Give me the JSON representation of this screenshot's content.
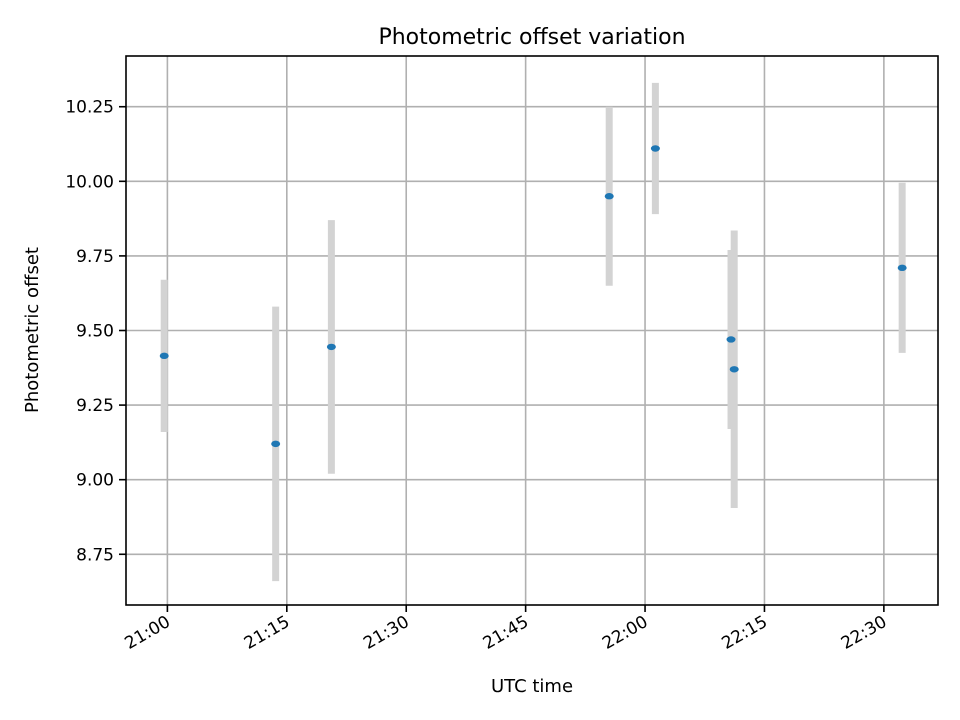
{
  "chart_data": {
    "type": "scatter",
    "title": "Photometric offset variation",
    "xlabel": "UTC time",
    "ylabel": "Photometric offset",
    "x_ticks": [
      "21:00",
      "21:15",
      "21:30",
      "21:45",
      "22:00",
      "22:15",
      "22:30"
    ],
    "y_ticks": [
      "8.75",
      "9.00",
      "9.25",
      "9.50",
      "9.75",
      "10.00",
      "10.25"
    ],
    "xlim": [
      "20:54.8",
      "22:36.8"
    ],
    "ylim": [
      8.58,
      10.42
    ],
    "grid": true,
    "colors": {
      "point": "#1f77b4",
      "errorbar": "#d3d3d3"
    },
    "points": [
      {
        "x": "20:59.6",
        "y": 9.415,
        "err": 0.255
      },
      {
        "x": "21:13.6",
        "y": 9.12,
        "err": 0.46
      },
      {
        "x": "21:20.6",
        "y": 9.445,
        "err": 0.425
      },
      {
        "x": "21:55.5",
        "y": 9.95,
        "err": 0.3
      },
      {
        "x": "22:01.3",
        "y": 10.11,
        "err": 0.22
      },
      {
        "x": "22:10.8",
        "y": 9.47,
        "err": 0.3
      },
      {
        "x": "22:11.2",
        "y": 9.37,
        "err": 0.465
      },
      {
        "x": "22:32.3",
        "y": 9.71,
        "err": 0.285
      }
    ]
  }
}
